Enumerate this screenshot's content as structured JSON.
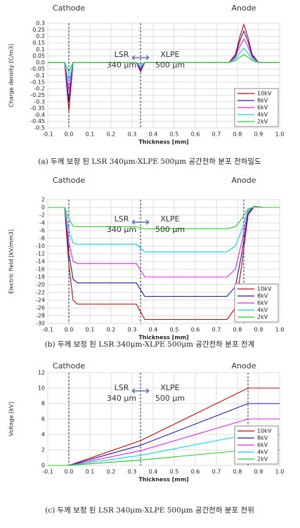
{
  "chart_data": [
    {
      "type": "line",
      "ylabel": "Charge density [C/m3]",
      "xlabel": "Thickness [mm]",
      "caption": "(a) 두께 보정 된 LSR 340μm-XLPE 500μm 공간전하 분포 전하밀도",
      "annotations": [
        "Cathode",
        "Anode",
        "LSR",
        "340 μm",
        "XLPE",
        "500 μm"
      ],
      "vlines": [
        0,
        0.34
      ],
      "xlim": [
        -0.1,
        1.0
      ],
      "ylim": [
        -0.5,
        0.3
      ],
      "xticks": [
        -0.1,
        {
          "value": 0,
          "label": "0.0"
        },
        0.1,
        0.2,
        0.3,
        0.4,
        0.5,
        0.6,
        0.7,
        0.8,
        0.9,
        {
          "value": 1,
          "label": "1.0"
        }
      ],
      "yticks": [
        0.3,
        0.25,
        0.2,
        0.15,
        0.1,
        0.05,
        {
          "value": 0,
          "label": "0.0"
        },
        -0.05,
        -0.1,
        -0.15,
        -0.2,
        -0.25,
        -0.3,
        -0.35,
        -0.4,
        -0.45,
        -0.5
      ],
      "x": [
        -0.1,
        -0.02,
        0,
        0.02,
        0.32,
        0.34,
        0.36,
        0.76,
        0.79,
        0.81,
        0.83,
        0.85,
        0.87,
        0.9,
        1.0
      ],
      "series": [
        {
          "name": "10kV",
          "color": "#d00000",
          "values": [
            0,
            0,
            -0.37,
            0,
            0,
            -0.07,
            0,
            0,
            0.06,
            0.19,
            0.29,
            0.19,
            0.06,
            0,
            0
          ]
        },
        {
          "name": "8kV",
          "color": "#1a1aa0",
          "values": [
            0,
            0,
            -0.3,
            0,
            0,
            -0.06,
            0,
            0,
            0.05,
            0.16,
            0.24,
            0.16,
            0.05,
            0,
            0
          ]
        },
        {
          "name": "6kV",
          "color": "#e020e0",
          "values": [
            0,
            0,
            -0.22,
            0,
            0,
            -0.045,
            0,
            0,
            0.04,
            0.12,
            0.18,
            0.12,
            0.04,
            0,
            0
          ]
        },
        {
          "name": "4kV",
          "color": "#00d8e8",
          "values": [
            0,
            0,
            -0.15,
            0,
            0,
            -0.03,
            0,
            0,
            0.025,
            0.07,
            0.11,
            0.07,
            0.025,
            0,
            0
          ]
        },
        {
          "name": "2kV",
          "color": "#22cc22",
          "values": [
            0,
            0,
            -0.07,
            0,
            0,
            -0.015,
            0,
            0,
            0.015,
            0.04,
            0.06,
            0.04,
            0.015,
            0,
            0
          ]
        }
      ]
    },
    {
      "type": "line",
      "ylabel": "Electric field [kV/mm3]",
      "xlabel": "Thickness [mm]",
      "caption": "(b) 두께 보정 된 LSR 340μm-XLPE 500μm 공간전하 분포 전계",
      "annotations": [
        "Cathode",
        "Anode",
        "LSR",
        "340 μm",
        "XLPE",
        "500 μm"
      ],
      "vlines": [
        0,
        0.34,
        0.83
      ],
      "xlim": [
        -0.1,
        1.0
      ],
      "ylim": [
        -30,
        2
      ],
      "xticks": [
        -0.1,
        {
          "value": 0,
          "label": "0.0"
        },
        0.1,
        0.2,
        0.3,
        0.4,
        0.5,
        0.6,
        0.7,
        0.8,
        0.9,
        {
          "value": 1,
          "label": "1.0"
        }
      ],
      "yticks": [
        2,
        0,
        -2,
        -4,
        -6,
        -8,
        -10,
        -12,
        -14,
        -16,
        -18,
        -20,
        -22,
        -24,
        -26,
        -28,
        -30
      ],
      "x": [
        -0.1,
        -0.02,
        0,
        0.02,
        0.04,
        0.32,
        0.36,
        0.75,
        0.79,
        0.82,
        0.85,
        0.88,
        0.92,
        1.0
      ],
      "series": [
        {
          "name": "10kV",
          "color": "#d00000",
          "values": [
            0,
            0,
            -15,
            -24,
            -25,
            -25,
            -29,
            -29,
            -26,
            -15,
            -2,
            0.3,
            0,
            0
          ]
        },
        {
          "name": "8kV",
          "color": "#1a1aa0",
          "values": [
            0,
            0,
            -12,
            -18.5,
            -19.5,
            -19.5,
            -23,
            -23,
            -20.5,
            -12,
            -1.5,
            0.3,
            0,
            0
          ]
        },
        {
          "name": "6kV",
          "color": "#e020e0",
          "values": [
            0,
            0,
            -9,
            -14,
            -14.5,
            -14.5,
            -18,
            -18,
            -16,
            -9,
            -1,
            0.3,
            0,
            0
          ]
        },
        {
          "name": "4kV",
          "color": "#00d8e8",
          "values": [
            0,
            0,
            -6,
            -9.2,
            -9.5,
            -9.5,
            -11.5,
            -11.5,
            -10,
            -6,
            -0.7,
            0.2,
            0,
            0
          ]
        },
        {
          "name": "2kV",
          "color": "#22cc22",
          "values": [
            0,
            0,
            -3,
            -4.8,
            -5,
            -5,
            -5.5,
            -5.5,
            -5,
            -3,
            -0.4,
            0.1,
            0,
            0
          ]
        }
      ]
    },
    {
      "type": "line",
      "ylabel": "Voltage [kV]",
      "xlabel": "Thickness [mm]",
      "caption": "(c) 두께 보정 된 LSR 340μm-XLPE 500μm 공간전하 분포 전위",
      "annotations": [
        "Cathode",
        "Anode",
        "LSR",
        "340 μm",
        "XLPE",
        "500 μm"
      ],
      "vlines": [
        0,
        0.34,
        0.85
      ],
      "xlim": [
        -0.1,
        1.0
      ],
      "ylim": [
        0,
        12
      ],
      "xticks": [
        -0.1,
        {
          "value": 0,
          "label": "0.0"
        },
        0.1,
        0.2,
        0.3,
        0.4,
        0.5,
        0.6,
        0.7,
        0.8,
        0.9,
        {
          "value": 1,
          "label": "1.0"
        }
      ],
      "yticks": [
        0,
        2,
        4,
        6,
        8,
        10,
        12
      ],
      "x": [
        -0.1,
        0,
        0.34,
        0.85,
        1.0
      ],
      "series": [
        {
          "name": "10kV",
          "color": "#d00000",
          "values": [
            0,
            0,
            3.2,
            10,
            10
          ]
        },
        {
          "name": "8kV",
          "color": "#1a1aa0",
          "values": [
            0,
            0,
            2.6,
            8,
            8
          ]
        },
        {
          "name": "6kV",
          "color": "#e020e0",
          "values": [
            0,
            0,
            1.9,
            6,
            6
          ]
        },
        {
          "name": "4kV",
          "color": "#00d8e8",
          "values": [
            0,
            0,
            1.3,
            4,
            4
          ]
        },
        {
          "name": "2kV",
          "color": "#22cc22",
          "values": [
            0,
            0,
            0.7,
            2,
            2
          ]
        }
      ]
    }
  ]
}
